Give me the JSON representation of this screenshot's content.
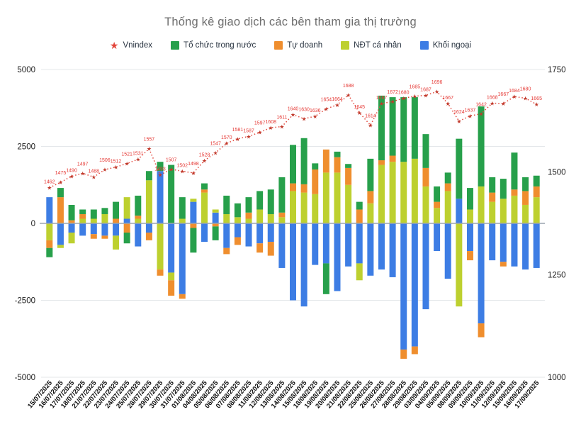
{
  "title": "Thống kê giao dịch các bên tham gia thị trường",
  "chart_data": {
    "type": "bar",
    "subtype": "stacked-bar-with-line-combo",
    "title": "Thống kê giao dịch các bên tham gia thị trường",
    "grid": true,
    "legend_position": "top",
    "categories": [
      "15/07/2025",
      "16/07/2025",
      "17/07/2025",
      "18/07/2025",
      "21/07/2025",
      "22/07/2025",
      "23/07/2025",
      "24/07/2025",
      "25/07/2025",
      "28/07/2025",
      "29/07/2025",
      "30/07/2025",
      "31/07/2025",
      "01/08/2025",
      "04/08/2025",
      "05/08/2025",
      "06/08/2025",
      "07/08/2025",
      "08/08/2025",
      "11/08/2025",
      "12/08/2025",
      "13/08/2025",
      "14/08/2025",
      "15/08/2025",
      "18/08/2025",
      "19/08/2025",
      "20/08/2025",
      "21/08/2025",
      "22/08/2025",
      "25/08/2025",
      "26/08/2025",
      "27/08/2025",
      "28/08/2025",
      "29/08/2025",
      "03/09/2025",
      "04/09/2025",
      "05/09/2025",
      "08/09/2025",
      "09/09/2025",
      "10/09/2025",
      "11/09/2025",
      "12/09/2025",
      "15/09/2025",
      "16/09/2025",
      "17/09/2025"
    ],
    "series": [
      {
        "name": "Tổ chức trong nước",
        "color": "#27a04b",
        "values": [
          -300,
          300,
          500,
          150,
          300,
          200,
          550,
          -350,
          650,
          300,
          300,
          1900,
          700,
          -800,
          200,
          -450,
          600,
          450,
          500,
          600,
          800,
          1150,
          1250,
          1500,
          200,
          -1000,
          180,
          130,
          250,
          1050,
          2100,
          1900,
          2100,
          2000,
          1100,
          500,
          350,
          1950,
          700,
          2600,
          500,
          650,
          1200,
          450,
          350
        ]
      },
      {
        "name": "Tự doanh",
        "color": "#ef8e2e",
        "values": [
          -250,
          850,
          100,
          150,
          -150,
          -100,
          150,
          -300,
          100,
          -250,
          -200,
          -500,
          -150,
          -150,
          100,
          -100,
          -200,
          -250,
          200,
          -300,
          -450,
          150,
          250,
          270,
          800,
          750,
          500,
          550,
          450,
          400,
          150,
          200,
          -300,
          -250,
          600,
          200,
          250,
          0,
          -300,
          -450,
          300,
          -150,
          200,
          450,
          350
        ]
      },
      {
        "name": "NĐT cá nhân",
        "color": "#bdd02f",
        "values": [
          -550,
          -100,
          -350,
          150,
          150,
          300,
          -450,
          700,
          150,
          1400,
          -1500,
          -250,
          150,
          100,
          1000,
          100,
          300,
          200,
          150,
          450,
          300,
          200,
          1050,
          1000,
          950,
          1650,
          1650,
          1250,
          -550,
          650,
          1900,
          2000,
          2000,
          2100,
          1200,
          500,
          1050,
          -2700,
          450,
          1200,
          700,
          800,
          900,
          600,
          850
        ]
      },
      {
        "name": "Khối ngoại",
        "color": "#3d7de4",
        "values": [
          850,
          -700,
          -300,
          -400,
          -350,
          -400,
          -400,
          150,
          -750,
          -300,
          1700,
          -1600,
          -2300,
          700,
          -600,
          350,
          -800,
          -450,
          -750,
          -650,
          -600,
          -1450,
          -2500,
          -2700,
          -1350,
          -1300,
          -2200,
          -1400,
          -1300,
          -1700,
          -1500,
          -1750,
          -4100,
          -4000,
          -2790,
          -900,
          -1800,
          800,
          -900,
          -3250,
          -1200,
          -1250,
          -1400,
          -1500,
          -1450
        ]
      }
    ],
    "stack_order_from_baseline": [
      "Khối ngoại",
      "NĐT cá nhân",
      "Tự doanh",
      "Tổ chức trong nước"
    ],
    "line_series": {
      "name": "Vnindex",
      "color": "#e2453a",
      "marker": "star",
      "marker_color": "#c0392b",
      "label_color": "#e53935",
      "values": [
        1462,
        1475,
        1490,
        1497,
        1488,
        1506,
        1512,
        1521,
        1531,
        1557,
        1493,
        1507,
        1502,
        1498,
        1528,
        1547,
        1570,
        1581,
        1587,
        1597,
        1608,
        1611,
        1640,
        1630,
        1636,
        1654,
        1664,
        1688,
        1645,
        1614,
        1667,
        1672,
        1680,
        1685,
        1687,
        1696,
        1667,
        1624,
        1637,
        1642,
        1668,
        1667,
        1684,
        1680,
        1665
      ]
    },
    "left_axis": {
      "min": -5000,
      "max": 5000,
      "ticks": [
        5000,
        2500,
        0,
        -2500,
        -5000
      ]
    },
    "right_axis": {
      "min": 1000,
      "max": 1750,
      "ticks": [
        1750,
        1500,
        1250,
        1000
      ]
    },
    "colors": {
      "grid": "#e4e7ea",
      "zero_line": "#9aa4ad",
      "axis_text": "#1c1c1c",
      "title_text": "#6e6e6e",
      "legend_text": "#27323f"
    }
  }
}
